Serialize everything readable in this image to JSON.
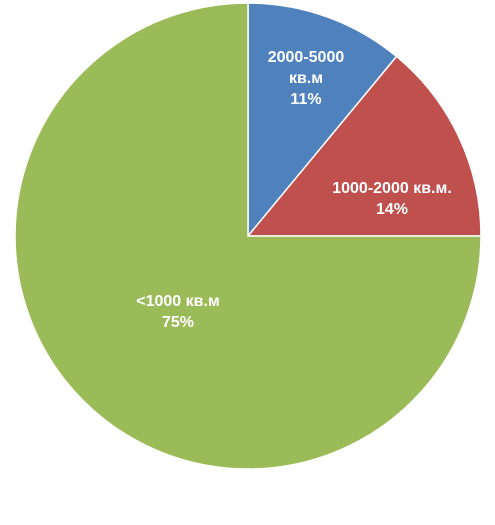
{
  "chart_data": {
    "type": "pie",
    "title": "",
    "start_angle_deg": 0,
    "direction": "clockwise",
    "slices": [
      {
        "label_lines": [
          "2000-5000",
          "кв.м"
        ],
        "pct_label": "11%",
        "value": 11,
        "color": "#4F81BD"
      },
      {
        "label_lines": [
          "1000-2000 кв.м."
        ],
        "pct_label": "14%",
        "value": 14,
        "color": "#C0504D"
      },
      {
        "label_lines": [
          "<1000 кв.м"
        ],
        "pct_label": "75%",
        "value": 75,
        "color": "#9BBB59"
      }
    ]
  }
}
